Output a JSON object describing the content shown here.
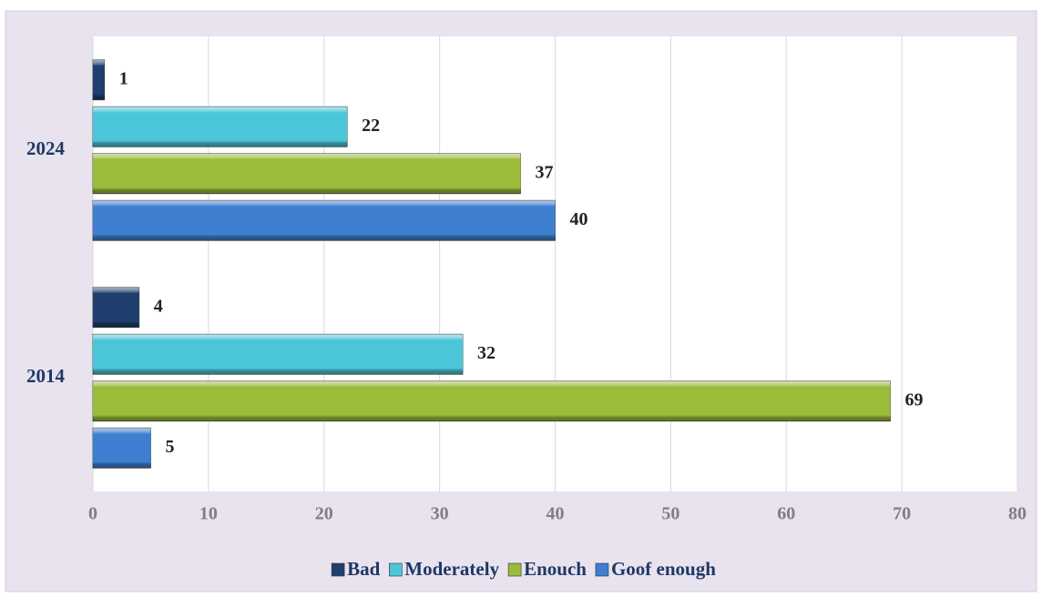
{
  "chart_data": {
    "type": "barh",
    "categories": [
      "2024",
      "2014"
    ],
    "series": [
      {
        "name": "Bad",
        "color": "#1f3f6e",
        "values": [
          1,
          4
        ]
      },
      {
        "name": "Moderately",
        "color": "#4bc6d8",
        "values": [
          22,
          32
        ]
      },
      {
        "name": "Enouch",
        "color": "#9bbb3a",
        "values": [
          37,
          69
        ]
      },
      {
        "name": "Goof enough",
        "color": "#3f7fd0",
        "values": [
          40,
          5
        ]
      }
    ],
    "xlim": [
      0,
      80
    ],
    "xticks": [
      0,
      10,
      20,
      30,
      40,
      50,
      60,
      70,
      80
    ],
    "grid": true,
    "legend": "bottom"
  }
}
